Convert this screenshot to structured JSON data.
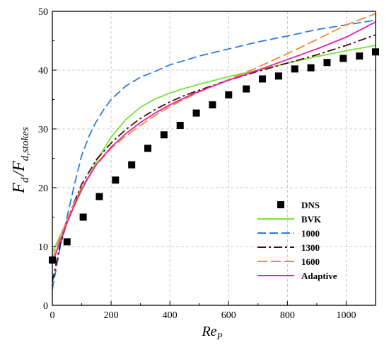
{
  "chart_data": {
    "type": "line",
    "xlabel": "Re_P",
    "xlabel_main": "Re",
    "xlabel_sub": "P",
    "ylabel": "F_d / F_d,stokes",
    "ylabel_main1": "F",
    "ylabel_sub1": "d",
    "ylabel_slash": "/",
    "ylabel_main2": "F",
    "ylabel_sub2": "d,stokes",
    "xlim": [
      0,
      1100
    ],
    "ylim": [
      0,
      50
    ],
    "xticks": [
      "0",
      "200",
      "400",
      "600",
      "800",
      "1000"
    ],
    "yticks": [
      "0",
      "10",
      "20",
      "30",
      "40",
      "50"
    ],
    "grid": true,
    "legend_position": "lower-right",
    "series": [
      {
        "name": "DNS",
        "kind": "markers",
        "color": "#000000",
        "x": [
          0,
          50,
          105,
          160,
          215,
          270,
          325,
          380,
          435,
          490,
          545,
          600,
          660,
          715,
          770,
          825,
          880,
          935,
          990,
          1045,
          1100
        ],
        "y": [
          7.7,
          10.8,
          15.0,
          18.5,
          21.3,
          23.9,
          26.7,
          29.0,
          30.6,
          32.7,
          34.1,
          35.8,
          36.8,
          38.5,
          39.0,
          40.2,
          40.4,
          41.3,
          42.0,
          42.4,
          43.1
        ]
      },
      {
        "name": "BVK",
        "kind": "line",
        "color": "#77e23b",
        "dash": "",
        "x": [
          0,
          25,
          50,
          75,
          100,
          150,
          200,
          250,
          300,
          350,
          400,
          450,
          500,
          600,
          700,
          800,
          900,
          1000,
          1100
        ],
        "y": [
          9.0,
          11.7,
          14.3,
          16.9,
          19.5,
          24.5,
          28.6,
          31.6,
          33.7,
          35.1,
          36.1,
          36.9,
          37.6,
          38.9,
          40.0,
          41.2,
          42.3,
          43.3,
          44.2
        ]
      },
      {
        "name": "1000",
        "kind": "line",
        "color": "#2d7ae0",
        "dash": "12,5",
        "x": [
          0,
          25,
          50,
          75,
          100,
          125,
          150,
          175,
          200,
          250,
          300,
          350,
          400,
          500,
          600,
          700,
          800,
          900,
          1000,
          1100
        ],
        "y": [
          2.7,
          9.5,
          15.0,
          20.5,
          25.5,
          28.8,
          31.3,
          33.3,
          35.0,
          37.3,
          38.8,
          39.8,
          40.9,
          42.4,
          43.6,
          44.8,
          45.8,
          46.9,
          47.7,
          48.5
        ]
      },
      {
        "name": "1300",
        "kind": "line",
        "color": "#4a0808",
        "dash": "12,4,3,4",
        "x": [
          0,
          25,
          50,
          75,
          100,
          150,
          200,
          250,
          300,
          350,
          400,
          450,
          500,
          600,
          700,
          800,
          900,
          1000,
          1100
        ],
        "y": [
          4.0,
          10.0,
          14.2,
          17.6,
          20.6,
          24.8,
          27.6,
          29.9,
          31.8,
          33.3,
          34.6,
          35.7,
          36.6,
          38.3,
          39.8,
          41.2,
          42.6,
          44.2,
          46.0
        ]
      },
      {
        "name": "1600",
        "kind": "line",
        "color": "#f08a2c",
        "dash": "14,5",
        "x": [
          0,
          25,
          50,
          75,
          100,
          150,
          200,
          250,
          300,
          350,
          400,
          450,
          500,
          600,
          700,
          800,
          900,
          1000,
          1100
        ],
        "y": [
          8.0,
          11.4,
          14.5,
          17.4,
          20.1,
          23.9,
          26.7,
          28.8,
          30.6,
          32.3,
          33.8,
          35.1,
          36.3,
          38.4,
          40.5,
          42.8,
          45.2,
          47.7,
          49.6
        ]
      },
      {
        "name": "Adaptive",
        "kind": "line",
        "color": "#ea1ea9",
        "dash": "",
        "x": [
          0,
          25,
          50,
          75,
          100,
          150,
          200,
          250,
          300,
          350,
          400,
          450,
          500,
          600,
          700,
          800,
          900,
          1000,
          1100
        ],
        "y": [
          7.0,
          10.8,
          14.0,
          17.0,
          19.8,
          24.0,
          26.9,
          29.2,
          31.1,
          32.7,
          34.1,
          35.3,
          36.4,
          38.3,
          40.0,
          41.8,
          43.6,
          45.6,
          48.2
        ]
      }
    ]
  }
}
